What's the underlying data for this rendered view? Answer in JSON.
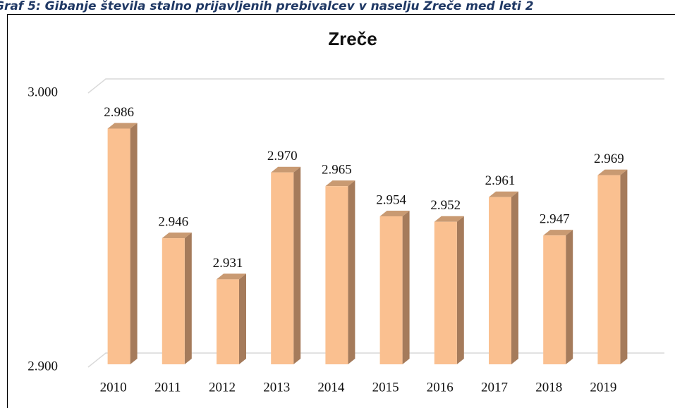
{
  "caption": "Graf 5: Gibanje števila stalno prijavljenih prebivalcev v naselju Zreče med leti 2",
  "chart_data": {
    "type": "bar3d",
    "title": "Zreče",
    "categories": [
      "2010",
      "2011",
      "2012",
      "2013",
      "2014",
      "2015",
      "2016",
      "2017",
      "2018",
      "2019"
    ],
    "values": [
      2986,
      2946,
      2931,
      2970,
      2965,
      2954,
      2952,
      2961,
      2947,
      2969
    ],
    "value_labels": [
      "2.986",
      "2.946",
      "2.931",
      "2.970",
      "2.965",
      "2.954",
      "2.952",
      "2.961",
      "2.947",
      "2.969"
    ],
    "color": "#fac090",
    "ylim": [
      2900,
      3000
    ],
    "yticks": [
      {
        "value": 2900,
        "label": "2.900"
      },
      {
        "value": 3000,
        "label": "3.000"
      }
    ],
    "grid": true
  }
}
